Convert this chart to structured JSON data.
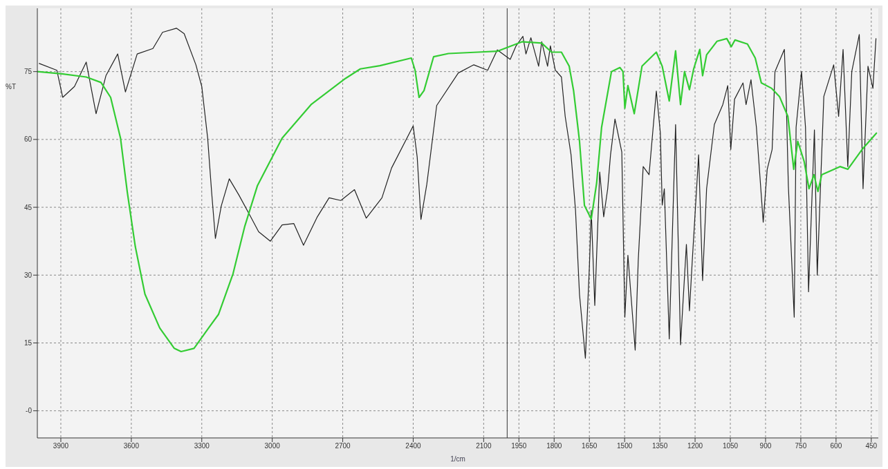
{
  "chart_data": {
    "type": "line",
    "xlabel": "1/cm",
    "ylabel": "%T",
    "xlim": [
      4000,
      420
    ],
    "xticks": [
      3900,
      3600,
      3300,
      3000,
      2700,
      2400,
      2100,
      1950,
      1800,
      1650,
      1500,
      1350,
      1200,
      1050,
      900,
      750,
      600,
      450
    ],
    "ylim": [
      -6,
      89
    ],
    "yticks": [
      {
        "value": 0,
        "label": "-0"
      },
      15,
      30,
      45,
      60,
      75
    ],
    "grid": true,
    "line_style": "solid",
    "marker": "none",
    "ref_lines": [
      {
        "axis": "x",
        "value": 2000,
        "label": null,
        "color": "#333333"
      }
    ],
    "series": [
      {
        "color": "#222222",
        "x": [
          3992,
          3917,
          3892,
          3842,
          3792,
          3750,
          3708,
          3658,
          3625,
          3575,
          3508,
          3467,
          3408,
          3375,
          3325,
          3300,
          3275,
          3258,
          3242,
          3217,
          3183,
          3142,
          3092,
          3058,
          3008,
          2958,
          2908,
          2867,
          2808,
          2758,
          2708,
          2650,
          2600,
          2533,
          2492,
          2400,
          2383,
          2367,
          2342,
          2300,
          2208,
          2142,
          2083,
          2042,
          1987,
          1962,
          1933,
          1920,
          1899,
          1866,
          1853,
          1828,
          1816,
          1795,
          1769,
          1753,
          1728,
          1709,
          1692,
          1667,
          1650,
          1642,
          1627,
          1606,
          1589,
          1572,
          1560,
          1541,
          1512,
          1499,
          1486,
          1455,
          1442,
          1421,
          1396,
          1365,
          1348,
          1340,
          1331,
          1310,
          1283,
          1262,
          1237,
          1224,
          1212,
          1185,
          1168,
          1151,
          1118,
          1082,
          1061,
          1048,
          1032,
          996,
          983,
          962,
          939,
          910,
          893,
          872,
          860,
          820,
          812,
          803,
          778,
          770,
          747,
          730,
          717,
          692,
          680,
          652,
          610,
          589,
          570,
          550,
          533,
          501,
          485,
          464,
          443,
          430
        ],
        "values": [
          76.8,
          75.3,
          69.3,
          71.7,
          77.1,
          65.7,
          74.1,
          78.9,
          70.5,
          78.9,
          80.1,
          83.7,
          84.6,
          83.4,
          76.5,
          71.7,
          60.3,
          48.3,
          38.1,
          45.3,
          51.3,
          47.7,
          42.9,
          39.6,
          37.5,
          41.1,
          41.4,
          36.6,
          42.9,
          47.1,
          46.5,
          48.9,
          42.6,
          47.1,
          53.7,
          63,
          56.1,
          42.3,
          50.1,
          67.5,
          74.7,
          76.5,
          75.3,
          79.8,
          77.7,
          80.7,
          82.8,
          78.9,
          82.5,
          76.2,
          81.6,
          76.2,
          80.7,
          75.3,
          73.8,
          65.1,
          56.6,
          44.3,
          25.7,
          11.6,
          31.8,
          44.3,
          23.3,
          52.8,
          42.9,
          49.1,
          56.6,
          64.5,
          57.2,
          20.7,
          34.4,
          13.4,
          33.2,
          54,
          52.2,
          70.7,
          61.5,
          45.5,
          49.1,
          15.9,
          63.3,
          14.6,
          36.8,
          22.1,
          33.2,
          56.6,
          28.8,
          49.1,
          63.3,
          67.7,
          71.9,
          57.8,
          68.9,
          72.5,
          67.7,
          73.2,
          62.7,
          41.7,
          53.4,
          57.8,
          75,
          79.9,
          68.9,
          49.8,
          20.7,
          62.7,
          75,
          62.7,
          26.3,
          62.1,
          30,
          69.5,
          76.5,
          65.1,
          79.9,
          54,
          75,
          83.2,
          49.1,
          76.2,
          71.3,
          82.3
        ]
      },
      {
        "color": "#33cc33",
        "x": [
          4000,
          3896,
          3792,
          3729,
          3688,
          3646,
          3617,
          3583,
          3542,
          3479,
          3417,
          3388,
          3333,
          3271,
          3229,
          3167,
          3117,
          3063,
          2958,
          2833,
          2688,
          2625,
          2542,
          2408,
          2392,
          2375,
          2354,
          2313,
          2250,
          2125,
          2042,
          1937,
          1853,
          1811,
          1769,
          1736,
          1717,
          1692,
          1671,
          1642,
          1619,
          1598,
          1556,
          1520,
          1507,
          1499,
          1486,
          1459,
          1426,
          1365,
          1340,
          1310,
          1283,
          1262,
          1245,
          1224,
          1206,
          1180,
          1168,
          1151,
          1107,
          1065,
          1046,
          1030,
          977,
          944,
          918,
          874,
          841,
          805,
          780,
          763,
          736,
          715,
          694,
          677,
          661,
          583,
          550,
          489,
          428
        ],
        "values": [
          75,
          74.5,
          73.8,
          72.6,
          69.3,
          60.3,
          48.3,
          36.3,
          25.8,
          18.3,
          13.8,
          13.1,
          13.8,
          18.3,
          21.3,
          30.3,
          40.8,
          49.8,
          60.3,
          67.8,
          73.5,
          75.6,
          76.3,
          78,
          75.3,
          69.3,
          70.8,
          78.3,
          79,
          79.3,
          79.5,
          81.6,
          81.3,
          79.3,
          79.3,
          76.2,
          70.7,
          59.6,
          45.4,
          42.4,
          50.4,
          62.7,
          75,
          75.9,
          75,
          66.9,
          71.9,
          65.7,
          76.2,
          79.3,
          76.2,
          68.5,
          79.6,
          67.7,
          75,
          71,
          75.6,
          79.9,
          74.1,
          78.7,
          81.7,
          82.3,
          80.5,
          82,
          81.1,
          78,
          72.5,
          71.3,
          69.5,
          65.1,
          53.4,
          59.6,
          55.2,
          49.1,
          52.2,
          48.5,
          52.2,
          54,
          53.4,
          57.8,
          61.4
        ]
      }
    ]
  }
}
